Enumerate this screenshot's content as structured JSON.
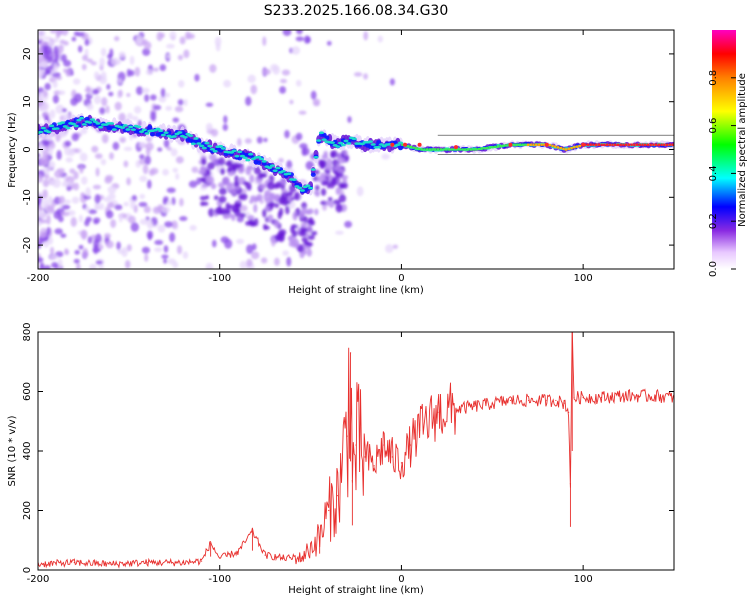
{
  "page_title": "S233.2025.166.08.34.G30",
  "chart_data": [
    {
      "type": "heatmap",
      "title": "S233.2025.166.08.34.G30",
      "xlabel": "Height of straight line (km)",
      "ylabel": "Frequency (Hz)",
      "xlim": [
        -200,
        150
      ],
      "ylim": [
        -25,
        25
      ],
      "xticks": [
        "-200",
        "-100",
        "0",
        "100"
      ],
      "yticks": [
        "-20",
        "-10",
        "0",
        "10",
        "20"
      ],
      "colorbar": {
        "label": "Normalized spectral amplitude",
        "range": [
          0,
          1
        ],
        "ticks": [
          "0.0",
          "0.2",
          "0.4",
          "0.6",
          "0.8"
        ]
      },
      "ridge": {
        "x": [
          -200,
          -185,
          -175,
          -160,
          -140,
          -120,
          -110,
          -100,
          -90,
          -80,
          -70,
          -60,
          -55,
          -50,
          -45,
          -40,
          -35,
          -30,
          -20,
          -10,
          0,
          10,
          20,
          40,
          60,
          80,
          90,
          100,
          120,
          150
        ],
        "y": [
          4,
          5,
          6,
          5,
          4,
          3,
          1,
          0,
          -1,
          -2,
          -4,
          -6,
          -8,
          -8,
          3,
          2,
          1,
          2,
          1,
          1,
          1,
          0,
          0,
          0,
          1,
          1,
          0,
          1,
          1,
          1
        ]
      }
    },
    {
      "type": "line",
      "xlabel": "Height of straight line (km)",
      "ylabel": "SNR (10 * v/v)",
      "xlim": [
        -200,
        150
      ],
      "ylim": [
        0,
        800
      ],
      "xticks": [
        "-200",
        "-100",
        "0",
        "100"
      ],
      "yticks": [
        "0",
        "200",
        "400",
        "600",
        "800"
      ],
      "color": "#e8302e",
      "x": [
        -200,
        -180,
        -160,
        -140,
        -120,
        -110,
        -105,
        -100,
        -90,
        -82,
        -75,
        -65,
        -55,
        -45,
        -40,
        -35,
        -30,
        -28,
        -27,
        -25,
        -20,
        -15,
        -10,
        -5,
        0,
        5,
        10,
        20,
        30,
        40,
        50,
        60,
        70,
        80,
        85,
        90,
        92,
        93,
        94,
        95,
        100,
        110,
        120,
        130,
        140,
        150
      ],
      "y": [
        20,
        25,
        20,
        25,
        25,
        30,
        90,
        40,
        60,
        130,
        50,
        40,
        40,
        110,
        200,
        250,
        450,
        730,
        300,
        420,
        380,
        350,
        420,
        380,
        360,
        420,
        470,
        530,
        540,
        550,
        560,
        570,
        570,
        570,
        570,
        560,
        530,
        290,
        800,
        580,
        580,
        580,
        585,
        585,
        585,
        580
      ]
    }
  ]
}
